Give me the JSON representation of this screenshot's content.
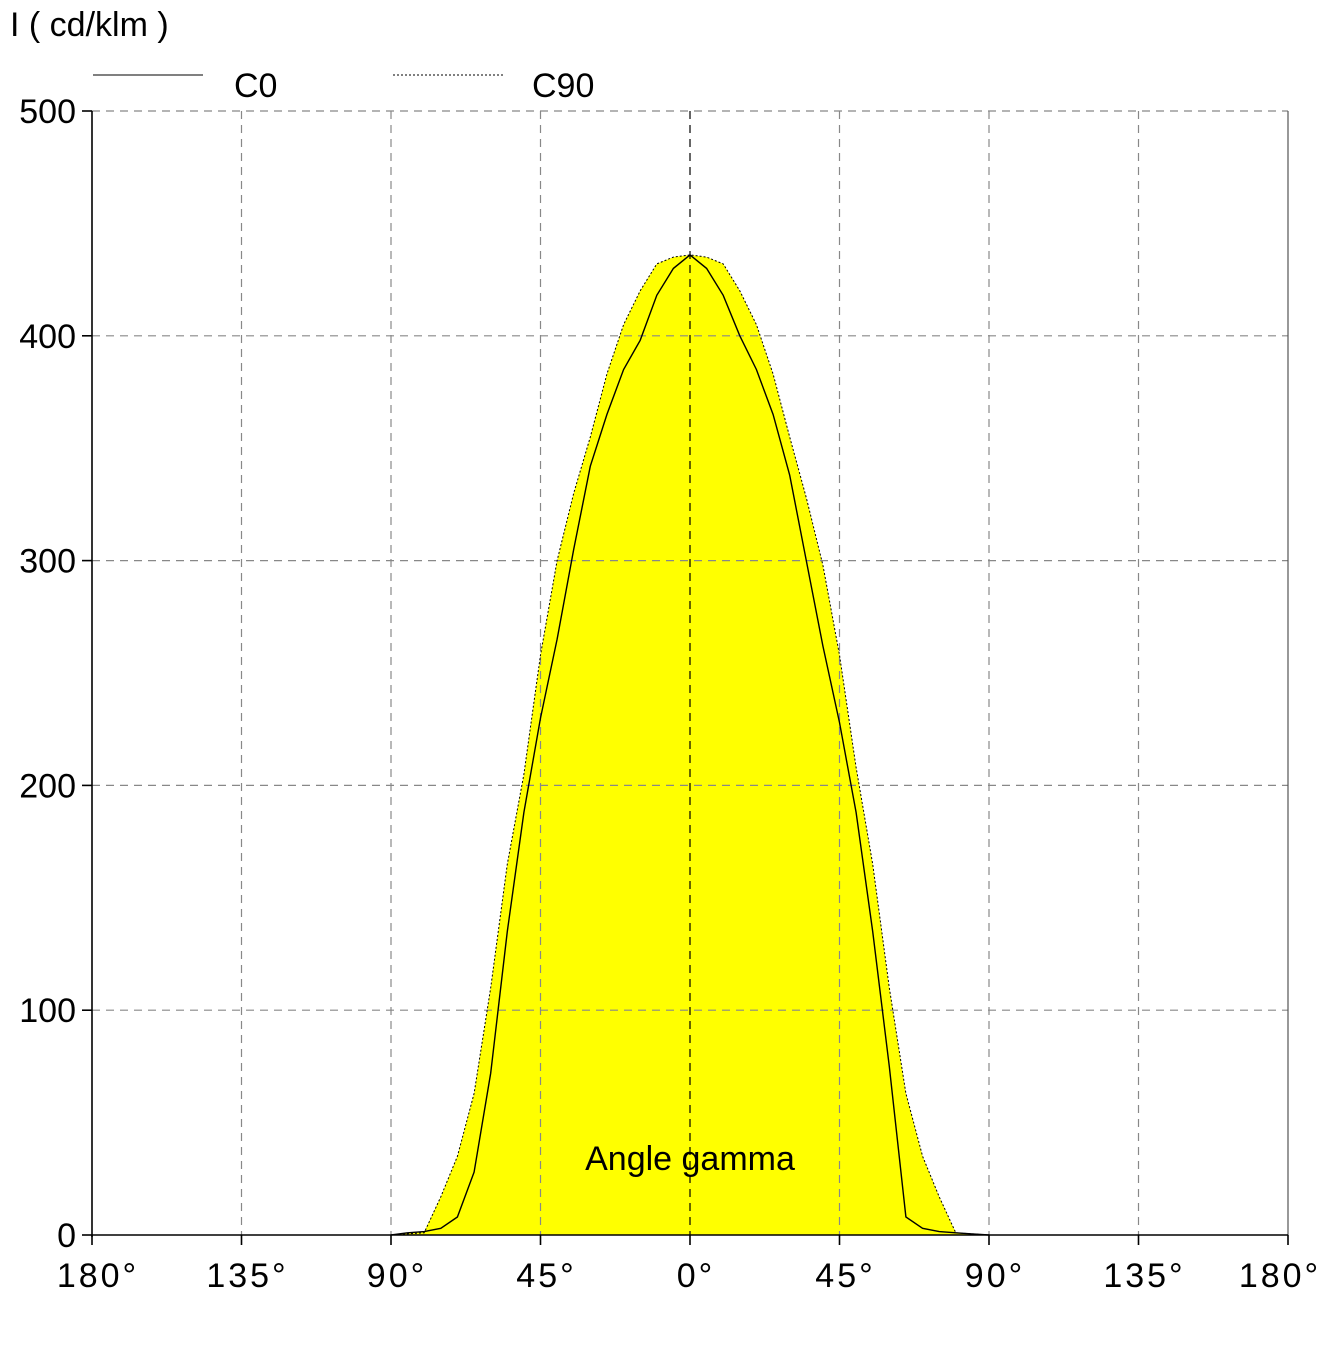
{
  "chart_data": {
    "type": "area",
    "ylabel": "I ( cd/klm )",
    "xlabel": "Angle gamma",
    "ylim": [
      0,
      500
    ],
    "xlim": [
      -180,
      180
    ],
    "y_ticks": [
      {
        "value": 0,
        "label": "0"
      },
      {
        "value": 100,
        "label": "100"
      },
      {
        "value": 200,
        "label": "200"
      },
      {
        "value": 300,
        "label": "300"
      },
      {
        "value": 400,
        "label": "400"
      },
      {
        "value": 500,
        "label": "500"
      }
    ],
    "x_ticks": [
      {
        "value": -180,
        "label": "180°"
      },
      {
        "value": -135,
        "label": "135°"
      },
      {
        "value": -90,
        "label": "90°"
      },
      {
        "value": -45,
        "label": "45°"
      },
      {
        "value": 0,
        "label": "0°"
      },
      {
        "value": 45,
        "label": "45°"
      },
      {
        "value": 90,
        "label": "90°"
      },
      {
        "value": 135,
        "label": "135°"
      },
      {
        "value": 180,
        "label": "180°"
      }
    ],
    "grid": true,
    "legend_position": "top",
    "fill_color": "#ffff00",
    "series": [
      {
        "name": "C0",
        "line_style": "solid",
        "x": [
          -90,
          -85,
          -80,
          -75,
          -70,
          -65,
          -60,
          -55,
          -50,
          -45,
          -40,
          -35,
          -30,
          -25,
          -20,
          -15,
          -10,
          -5,
          0,
          5,
          10,
          15,
          20,
          25,
          30,
          35,
          40,
          45,
          50,
          55,
          60,
          65,
          70,
          75,
          80,
          85,
          90
        ],
        "y": [
          0,
          1,
          1.5,
          3,
          8,
          28,
          72,
          135,
          188,
          230,
          265,
          305,
          342,
          365,
          385,
          398,
          418,
          430,
          436,
          430,
          418,
          400,
          385,
          365,
          338,
          300,
          262,
          228,
          188,
          135,
          75,
          8,
          3,
          1.5,
          1,
          0.5,
          0
        ]
      },
      {
        "name": "C90",
        "line_style": "dotted",
        "x": [
          -90,
          -85,
          -80,
          -75,
          -70,
          -65,
          -60,
          -55,
          -50,
          -45,
          -40,
          -35,
          -30,
          -25,
          -20,
          -15,
          -10,
          -5,
          0,
          5,
          10,
          15,
          20,
          25,
          30,
          35,
          40,
          45,
          50,
          55,
          60,
          65,
          70,
          75,
          80,
          85,
          90
        ],
        "y": [
          0,
          0.5,
          1,
          17,
          35,
          63,
          110,
          165,
          205,
          258,
          300,
          330,
          355,
          383,
          405,
          420,
          432,
          435,
          436,
          435,
          432,
          420,
          405,
          383,
          355,
          328,
          298,
          258,
          208,
          165,
          110,
          63,
          35,
          17,
          1,
          0.5,
          0
        ]
      }
    ]
  }
}
